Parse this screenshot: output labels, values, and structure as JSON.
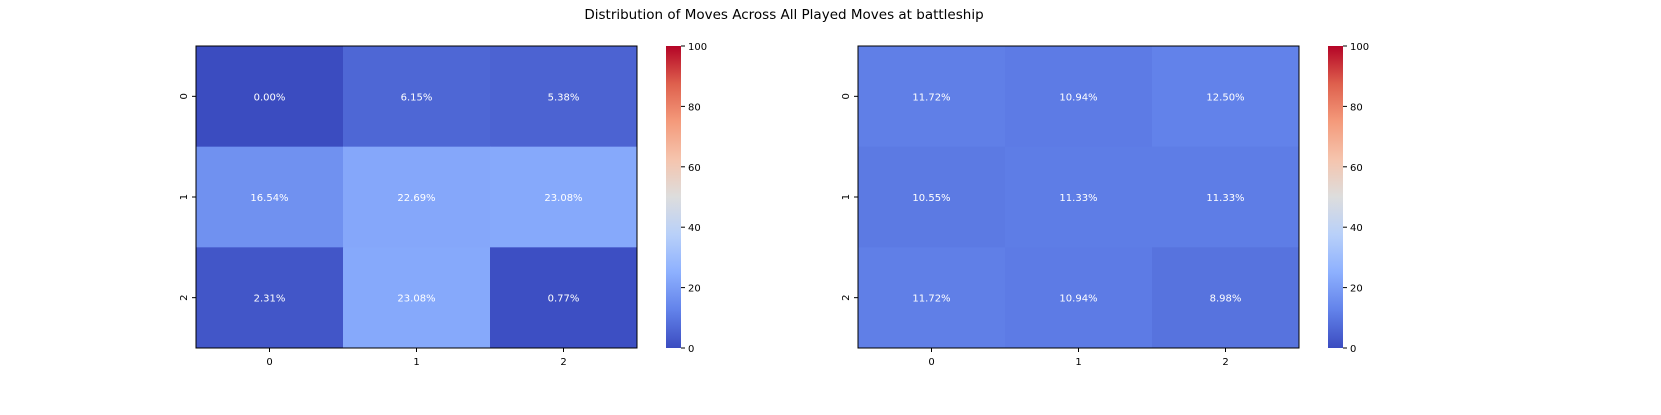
{
  "chart_data": {
    "type": "heatmap",
    "title": "Distribution of Moves Across All Played Moves at battleship",
    "colormap": "coolwarm",
    "panels": [
      {
        "x_ticks": [
          "0",
          "1",
          "2"
        ],
        "y_ticks": [
          "0",
          "1",
          "2"
        ],
        "values": [
          [
            0.0,
            6.15,
            5.38
          ],
          [
            16.54,
            22.69,
            23.08
          ],
          [
            2.31,
            23.08,
            0.77
          ]
        ],
        "labels": [
          [
            "0.00%",
            "6.15%",
            "5.38%"
          ],
          [
            "16.54%",
            "22.69%",
            "23.08%"
          ],
          [
            "2.31%",
            "23.08%",
            "0.77%"
          ]
        ],
        "colorbar": {
          "range": [
            0,
            100
          ],
          "ticks": [
            "0",
            "20",
            "40",
            "60",
            "80",
            "100"
          ]
        }
      },
      {
        "x_ticks": [
          "0",
          "1",
          "2"
        ],
        "y_ticks": [
          "0",
          "1",
          "2"
        ],
        "values": [
          [
            11.72,
            10.94,
            12.5
          ],
          [
            10.55,
            11.33,
            11.33
          ],
          [
            11.72,
            10.94,
            8.98
          ]
        ],
        "labels": [
          [
            "11.72%",
            "10.94%",
            "12.50%"
          ],
          [
            "10.55%",
            "11.33%",
            "11.33%"
          ],
          [
            "11.72%",
            "10.94%",
            "8.98%"
          ]
        ],
        "colorbar": {
          "range": [
            0,
            100
          ],
          "ticks": [
            "0",
            "20",
            "40",
            "60",
            "80",
            "100"
          ]
        }
      }
    ]
  }
}
